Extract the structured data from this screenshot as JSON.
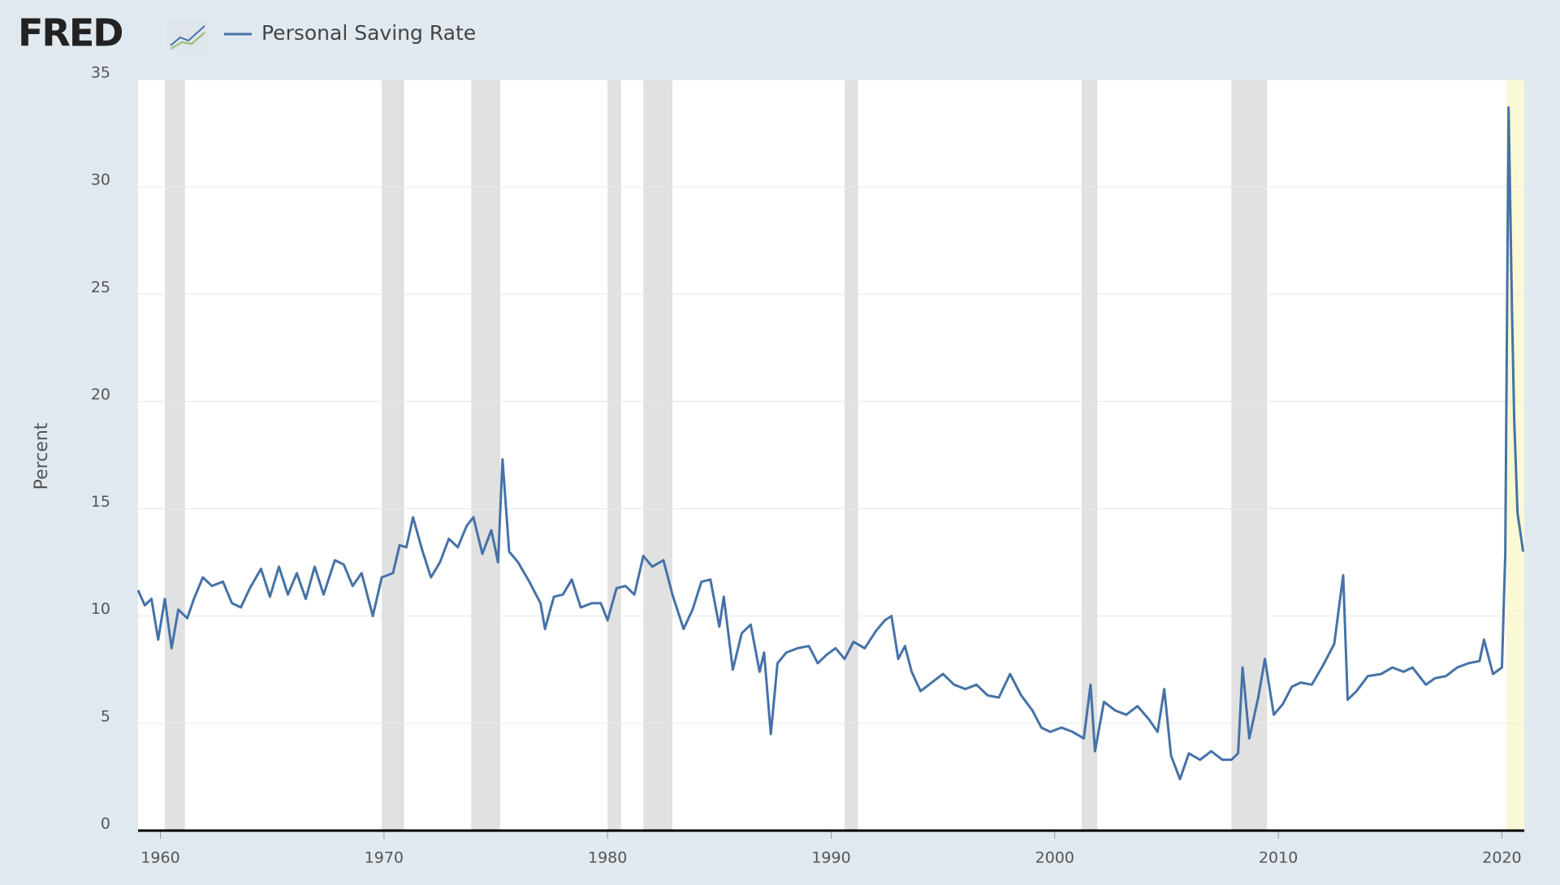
{
  "logo": "FRED",
  "chart_data": {
    "type": "line",
    "ylabel": "Percent",
    "series": [
      {
        "name": "Personal Saving Rate",
        "color": "#4572a7",
        "x": [
          1959.0,
          1959.3,
          1959.6,
          1959.9,
          1960.2,
          1960.5,
          1960.8,
          1961.2,
          1961.5,
          1961.9,
          1962.3,
          1962.8,
          1963.2,
          1963.6,
          1964.0,
          1964.5,
          1964.9,
          1965.3,
          1965.7,
          1966.1,
          1966.5,
          1966.9,
          1967.3,
          1967.8,
          1968.2,
          1968.6,
          1969.0,
          1969.5,
          1969.9,
          1970.4,
          1970.7,
          1971.0,
          1971.3,
          1971.7,
          1972.1,
          1972.5,
          1972.9,
          1973.3,
          1973.7,
          1974.0,
          1974.4,
          1974.8,
          1975.1,
          1975.3,
          1975.6,
          1976.0,
          1976.5,
          1977.0,
          1977.2,
          1977.6,
          1978.0,
          1978.4,
          1978.8,
          1979.3,
          1979.7,
          1980.0,
          1980.4,
          1980.8,
          1981.2,
          1981.6,
          1982.0,
          1982.5,
          1982.9,
          1983.4,
          1983.8,
          1984.2,
          1984.6,
          1985.0,
          1985.2,
          1985.6,
          1986.0,
          1986.4,
          1986.8,
          1987.0,
          1987.3,
          1987.6,
          1988.0,
          1988.5,
          1989.0,
          1989.4,
          1989.8,
          1990.2,
          1990.6,
          1991.0,
          1991.5,
          1992.0,
          1992.4,
          1992.7,
          1993.0,
          1993.3,
          1993.6,
          1994.0,
          1994.5,
          1995.0,
          1995.5,
          1996.0,
          1996.5,
          1997.0,
          1997.5,
          1998.0,
          1998.5,
          1999.0,
          1999.4,
          1999.8,
          2000.3,
          2000.8,
          2001.3,
          2001.6,
          2001.8,
          2002.2,
          2002.7,
          2003.2,
          2003.7,
          2004.2,
          2004.6,
          2004.9,
          2005.2,
          2005.6,
          2006.0,
          2006.5,
          2007.0,
          2007.5,
          2007.9,
          2008.2,
          2008.4,
          2008.7,
          2009.1,
          2009.4,
          2009.8,
          2010.2,
          2010.6,
          2011.0,
          2011.5,
          2012.0,
          2012.5,
          2012.9,
          2013.1,
          2013.5,
          2014.0,
          2014.6,
          2015.1,
          2015.6,
          2016.0,
          2016.6,
          2017.0,
          2017.5,
          2018.0,
          2018.5,
          2019.0,
          2019.2,
          2019.6,
          2020.0,
          2020.15,
          2020.3,
          2020.45,
          2020.55,
          2020.7,
          2020.95
        ],
        "values": [
          11.2,
          10.5,
          10.8,
          8.9,
          10.8,
          8.5,
          10.3,
          9.9,
          10.8,
          11.8,
          11.4,
          11.6,
          10.6,
          10.4,
          11.3,
          12.2,
          10.9,
          12.3,
          11.0,
          12.0,
          10.8,
          12.3,
          11.0,
          12.6,
          12.4,
          11.4,
          12.0,
          10.0,
          11.8,
          12.0,
          13.3,
          13.2,
          14.6,
          13.1,
          11.8,
          12.5,
          13.6,
          13.2,
          14.2,
          14.6,
          12.9,
          14.0,
          12.5,
          17.3,
          13.0,
          12.5,
          11.6,
          10.6,
          9.4,
          10.9,
          11.0,
          11.7,
          10.4,
          10.6,
          10.6,
          9.8,
          11.3,
          11.4,
          11.0,
          12.8,
          12.3,
          12.6,
          11.0,
          9.4,
          10.3,
          11.6,
          11.7,
          9.5,
          10.9,
          7.5,
          9.2,
          9.6,
          7.4,
          8.3,
          4.5,
          7.8,
          8.3,
          8.5,
          8.6,
          7.8,
          8.2,
          8.5,
          8.0,
          8.8,
          8.5,
          9.3,
          9.8,
          10.0,
          8.0,
          8.6,
          7.4,
          6.5,
          6.9,
          7.3,
          6.8,
          6.6,
          6.8,
          6.3,
          6.2,
          7.3,
          6.3,
          5.6,
          4.8,
          4.6,
          4.8,
          4.6,
          4.3,
          6.8,
          3.7,
          6.0,
          5.6,
          5.4,
          5.8,
          5.2,
          4.6,
          6.6,
          3.5,
          2.4,
          3.6,
          3.3,
          3.7,
          3.3,
          3.3,
          3.6,
          7.6,
          4.3,
          6.2,
          8.0,
          5.4,
          5.9,
          6.7,
          6.9,
          6.8,
          7.7,
          8.7,
          11.9,
          6.1,
          6.5,
          7.2,
          7.3,
          7.6,
          7.4,
          7.6,
          6.8,
          7.1,
          7.2,
          7.6,
          7.8,
          7.9,
          8.9,
          7.3,
          7.6,
          12.9,
          33.7,
          24.2,
          19.2,
          14.8,
          13.0
        ]
      }
    ],
    "recessions": [
      [
        1960.2,
        1961.1
      ],
      [
        1969.9,
        1970.9
      ],
      [
        1973.9,
        1975.2
      ],
      [
        1980.0,
        1980.6
      ],
      [
        1981.6,
        1982.9
      ],
      [
        1990.6,
        1991.2
      ],
      [
        2001.2,
        2001.9
      ],
      [
        2007.9,
        2009.5
      ]
    ],
    "recession_color": "#e1e1e1",
    "highlight": [
      2020.2,
      2021.0
    ],
    "highlight_color": "#fbf8d6",
    "xlim": [
      1959.0,
      2021.0
    ],
    "ylim": [
      0,
      35
    ],
    "xticks": [
      1960,
      1970,
      1980,
      1990,
      2000,
      2010,
      2020
    ],
    "yticks": [
      0,
      5,
      10,
      15,
      20,
      25,
      30,
      35
    ],
    "grid": true
  }
}
